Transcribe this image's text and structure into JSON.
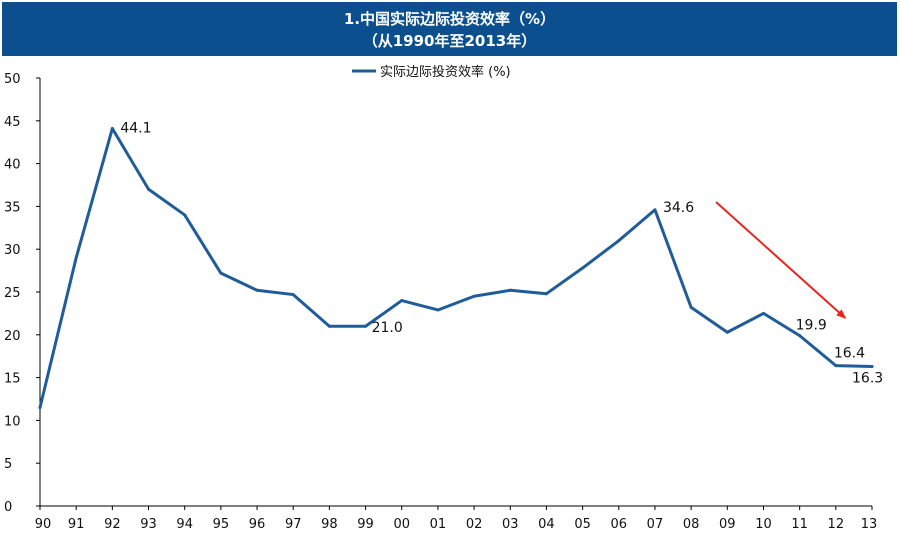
{
  "header": {
    "title_line1": "1.中国实际边际投资效率（%）",
    "title_line2": "（从1990年至2013年）"
  },
  "colors": {
    "header_bg": "#0b4f8f",
    "series": "#1f5c99",
    "arrow": "#e8241f",
    "axis": "#000000"
  },
  "chart_data": {
    "type": "line",
    "title": "1.中国实际边际投资效率（%）",
    "subtitle": "（从1990年至2013年）",
    "xlabel": "",
    "ylabel": "",
    "categories": [
      "90",
      "91",
      "92",
      "93",
      "94",
      "95",
      "96",
      "97",
      "98",
      "99",
      "00",
      "01",
      "02",
      "03",
      "04",
      "05",
      "06",
      "07",
      "08",
      "09",
      "10",
      "11",
      "12",
      "13"
    ],
    "y_ticks": [
      "0",
      "5",
      "10",
      "15",
      "20",
      "25",
      "30",
      "35",
      "40",
      "45",
      "50"
    ],
    "ylim": [
      0,
      50
    ],
    "grid": false,
    "legend": {
      "position": "top-center"
    },
    "series": [
      {
        "name": "实际边际投资效率 (%)",
        "values": [
          11.5,
          29.0,
          44.1,
          37.0,
          34.0,
          27.2,
          25.2,
          24.7,
          21.0,
          21.0,
          24.0,
          22.9,
          24.5,
          25.2,
          24.8,
          27.8,
          31.0,
          34.6,
          23.2,
          20.3,
          22.5,
          19.9,
          16.4,
          16.3
        ]
      }
    ],
    "data_labels": [
      {
        "index": 2,
        "text": "44.1"
      },
      {
        "index": 9,
        "text": "21.0"
      },
      {
        "index": 17,
        "text": "34.6"
      },
      {
        "index": 21,
        "text": "19.9"
      },
      {
        "index": 22,
        "text": "16.4"
      },
      {
        "index": 23,
        "text": "16.3"
      }
    ],
    "annotations": [
      {
        "type": "arrow",
        "direction": "down-right",
        "color": "red",
        "from_x": "08",
        "from_y": 35.5,
        "to_x": "12",
        "to_y": 22.0
      }
    ]
  }
}
